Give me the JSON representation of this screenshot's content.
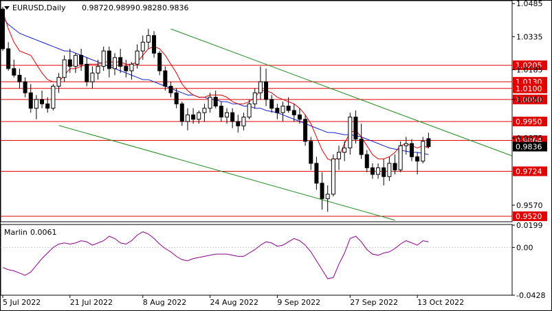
{
  "header": {
    "symbol": "EURUSD,Daily",
    "open": "0.9872",
    "high": "0.9899",
    "low": "0.9828",
    "close": "0.9836"
  },
  "chart_data": {
    "type": "candlestick",
    "price_axis": {
      "range": [
        0.9495,
        1.0495
      ],
      "tick_labels": [
        "1.0485",
        "1.0335",
        "1.0185",
        "1.0050",
        "0.9875",
        "0.9570"
      ],
      "current_price": "0.9836"
    },
    "levels": [
      {
        "value": 1.0205,
        "label": "1.0205"
      },
      {
        "value": 1.013,
        "label": "1.0130"
      },
      {
        "value": 1.01,
        "label": "1.0100"
      },
      {
        "value": 1.005,
        "label": "1.0050"
      },
      {
        "value": 0.995,
        "label": "0.9950"
      },
      {
        "value": 0.9864,
        "label": "0.9864"
      },
      {
        "value": 0.9724,
        "label": "0.9724"
      },
      {
        "value": 0.952,
        "label": "0.9520"
      }
    ],
    "date_labels": [
      {
        "text": "5 Jul 2022",
        "index": 0
      },
      {
        "text": "21 Jul 2022",
        "index": 12
      },
      {
        "text": "8 Aug 2022",
        "index": 25
      },
      {
        "text": "24 Aug 2022",
        "index": 37
      },
      {
        "text": "9 Sep 2022",
        "index": 49
      },
      {
        "text": "27 Sep 2022",
        "index": 62
      },
      {
        "text": "13 Oct 2022",
        "index": 74
      }
    ],
    "candles": [
      [
        1.046,
        1.047,
        1.027,
        1.028
      ],
      [
        1.028,
        1.031,
        1.018,
        1.019
      ],
      [
        1.019,
        1.023,
        1.015,
        1.016
      ],
      [
        1.016,
        1.019,
        1.01,
        1.013
      ],
      [
        1.013,
        1.015,
        1.006,
        1.008
      ],
      [
        1.008,
        1.012,
        0.999,
        1.001
      ],
      [
        1.001,
        1.007,
        0.996,
        1.005
      ],
      [
        1.005,
        1.009,
        1.001,
        1.003
      ],
      [
        1.003,
        1.006,
        0.999,
        1.001
      ],
      [
        1.001,
        1.012,
        1.0,
        1.011
      ],
      [
        1.011,
        1.017,
        1.008,
        1.015
      ],
      [
        1.015,
        1.025,
        1.013,
        1.023
      ],
      [
        1.023,
        1.028,
        1.017,
        1.02
      ],
      [
        1.02,
        1.026,
        1.017,
        1.025
      ],
      [
        1.025,
        1.028,
        1.018,
        1.021
      ],
      [
        1.021,
        1.024,
        1.011,
        1.013
      ],
      [
        1.013,
        1.02,
        1.01,
        1.017
      ],
      [
        1.017,
        1.023,
        1.014,
        1.02
      ],
      [
        1.02,
        1.029,
        1.018,
        1.027
      ],
      [
        1.027,
        1.029,
        1.015,
        1.019
      ],
      [
        1.019,
        1.026,
        1.016,
        1.024
      ],
      [
        1.024,
        1.028,
        1.017,
        1.02
      ],
      [
        1.02,
        1.023,
        1.015,
        1.018
      ],
      [
        1.018,
        1.022,
        1.014,
        1.021
      ],
      [
        1.021,
        1.03,
        1.019,
        1.027
      ],
      [
        1.027,
        1.034,
        1.023,
        1.031
      ],
      [
        1.031,
        1.037,
        1.028,
        1.034
      ],
      [
        1.034,
        1.036,
        1.024,
        1.026
      ],
      [
        1.026,
        1.027,
        1.016,
        1.018
      ],
      [
        1.018,
        1.02,
        1.009,
        1.011
      ],
      [
        1.011,
        1.013,
        1.006,
        1.008
      ],
      [
        1.008,
        1.01,
        1.001,
        1.003
      ],
      [
        1.003,
        1.004,
        0.993,
        0.995
      ],
      [
        0.995,
        1.001,
        0.991,
        0.998
      ],
      [
        0.998,
        1.001,
        0.994,
        0.996
      ],
      [
        0.996,
        1.0,
        0.994,
        0.999
      ],
      [
        0.999,
        1.003,
        0.995,
        1.001
      ],
      [
        1.001,
        1.008,
        0.999,
        1.006
      ],
      [
        1.006,
        1.009,
        1.001,
        1.002
      ],
      [
        1.002,
        1.004,
        0.995,
        0.997
      ],
      [
        0.997,
        1.001,
        0.994,
        0.999
      ],
      [
        0.999,
        1.001,
        0.992,
        0.995
      ],
      [
        0.995,
        0.998,
        0.99,
        0.993
      ],
      [
        0.993,
        0.999,
        0.991,
        0.997
      ],
      [
        0.997,
        1.005,
        0.996,
        1.003
      ],
      [
        1.003,
        1.01,
        1.001,
        1.008
      ],
      [
        1.008,
        1.02,
        1.005,
        1.013
      ],
      [
        1.013,
        1.019,
        1.002,
        1.005
      ],
      [
        1.005,
        1.007,
        0.999,
        1.001
      ],
      [
        1.001,
        1.003,
        0.996,
        0.999
      ],
      [
        0.999,
        1.004,
        0.995,
        1.002
      ],
      [
        1.002,
        1.006,
        0.999,
        1.0
      ],
      [
        1.0,
        1.003,
        0.995,
        0.998
      ],
      [
        0.998,
        1.001,
        0.994,
        0.996
      ],
      [
        0.996,
        0.998,
        0.984,
        0.986
      ],
      [
        0.986,
        0.988,
        0.973,
        0.976
      ],
      [
        0.976,
        0.979,
        0.964,
        0.967
      ],
      [
        0.967,
        0.972,
        0.955,
        0.96
      ],
      [
        0.96,
        0.966,
        0.954,
        0.962
      ],
      [
        0.962,
        0.98,
        0.961,
        0.978
      ],
      [
        0.978,
        0.984,
        0.973,
        0.981
      ],
      [
        0.981,
        0.986,
        0.977,
        0.983
      ],
      [
        0.983,
        0.999,
        0.98,
        0.997
      ],
      [
        0.997,
        1.0,
        0.985,
        0.987
      ],
      [
        0.987,
        0.994,
        0.978,
        0.98
      ],
      [
        0.98,
        0.982,
        0.972,
        0.974
      ],
      [
        0.974,
        0.976,
        0.969,
        0.971
      ],
      [
        0.971,
        0.976,
        0.969,
        0.974
      ],
      [
        0.974,
        0.978,
        0.966,
        0.97
      ],
      [
        0.97,
        0.979,
        0.968,
        0.976
      ],
      [
        0.976,
        0.98,
        0.971,
        0.973
      ],
      [
        0.973,
        0.986,
        0.972,
        0.984
      ],
      [
        0.984,
        0.988,
        0.98,
        0.985
      ],
      [
        0.985,
        0.987,
        0.977,
        0.979
      ],
      [
        0.979,
        0.981,
        0.971,
        0.977
      ],
      [
        0.977,
        0.988,
        0.976,
        0.986
      ],
      [
        0.9872,
        0.9899,
        0.9828,
        0.9836
      ]
    ],
    "ma_red": [
      1.045,
      1.037,
      1.031,
      1.027,
      1.026,
      1.025,
      1.021,
      1.017,
      1.014,
      1.013,
      1.013,
      1.016,
      1.019,
      1.019,
      1.02,
      1.021,
      1.021,
      1.021,
      1.022,
      1.022,
      1.022,
      1.022,
      1.021,
      1.021,
      1.022,
      1.025,
      1.028,
      1.029,
      1.028,
      1.025,
      1.021,
      1.017,
      1.012,
      1.009,
      1.007,
      1.006,
      1.006,
      1.007,
      1.007,
      1.007,
      1.006,
      1.004,
      1.003,
      1.003,
      1.004,
      1.006,
      1.009,
      1.009,
      1.008,
      1.006,
      1.005,
      1.004,
      1.003,
      1.001,
      0.998,
      0.994,
      0.988,
      0.982,
      0.978,
      0.977,
      0.979,
      0.985,
      0.99,
      0.991,
      0.988,
      0.984,
      0.98,
      0.978,
      0.978,
      0.979,
      0.981,
      0.984,
      0.985,
      0.984,
      0.983,
      0.984,
      0.983
    ],
    "ma_blue": [
      1.042,
      1.039,
      1.037,
      1.035,
      1.034,
      1.033,
      1.032,
      1.031,
      1.03,
      1.029,
      1.028,
      1.027,
      1.027,
      1.026,
      1.025,
      1.024,
      1.023,
      1.022,
      1.021,
      1.02,
      1.019,
      1.018,
      1.017,
      1.016,
      1.015,
      1.014,
      1.014,
      1.013,
      1.012,
      1.011,
      1.01,
      1.009,
      1.008,
      1.007,
      1.007,
      1.006,
      1.006,
      1.005,
      1.005,
      1.004,
      1.004,
      1.003,
      1.003,
      1.002,
      1.002,
      1.001,
      1.001,
      1.0,
      0.9995,
      0.999,
      0.998,
      0.997,
      0.996,
      0.995,
      0.994,
      0.993,
      0.992,
      0.991,
      0.99,
      0.99,
      0.9895,
      0.989,
      0.989,
      0.9885,
      0.988,
      0.987,
      0.986,
      0.985,
      0.984,
      0.983,
      0.9825,
      0.982,
      0.9815,
      0.981,
      0.981,
      0.9805,
      0.98
    ],
    "channel": {
      "upper": [
        {
          "i": 30,
          "v": 1.037
        },
        {
          "i": 82,
          "v": 0.9878
        }
      ],
      "lower": [
        {
          "i": 10,
          "v": 0.9932
        },
        {
          "i": 70,
          "v": 0.9502
        }
      ]
    },
    "oscillator": {
      "name": "Marlin",
      "value": "0.0061",
      "range": [
        -0.0428,
        0.0199
      ],
      "tick_labels": [
        "0.0199",
        "0.00",
        "-0.0428"
      ],
      "values": [
        -0.018,
        -0.02,
        -0.021,
        -0.023,
        -0.025,
        -0.022,
        -0.016,
        -0.01,
        -0.005,
        0.0,
        0.003,
        0.004,
        0.003,
        0.004,
        0.006,
        0.005,
        0.002,
        0.004,
        0.006,
        0.01,
        0.008,
        0.004,
        0.003,
        0.006,
        0.011,
        0.014,
        0.012,
        0.008,
        0.003,
        -0.001,
        -0.004,
        -0.008,
        -0.011,
        -0.012,
        -0.01,
        -0.009,
        -0.008,
        -0.007,
        -0.006,
        -0.006,
        -0.006,
        -0.007,
        -0.008,
        -0.008,
        -0.005,
        -0.002,
        0.002,
        0.005,
        0.004,
        0.001,
        0.002,
        0.005,
        0.008,
        0.006,
        0.002,
        -0.004,
        -0.012,
        -0.02,
        -0.028,
        -0.027,
        -0.015,
        -0.005,
        0.008,
        0.01,
        0.005,
        -0.002,
        -0.006,
        -0.007,
        -0.005,
        -0.004,
        -0.001,
        0.003,
        0.006,
        0.004,
        0.002,
        0.006,
        0.005
      ]
    },
    "colors": {
      "bull": "#ffffff",
      "bear": "#000000",
      "wick": "#000000",
      "level": "#e00000",
      "level_label_bg": "#e00000",
      "ma_red": "#e00000",
      "ma_blue": "#1020d0",
      "channel": "#1f8c1f",
      "oscillator": "#8a008a"
    }
  }
}
